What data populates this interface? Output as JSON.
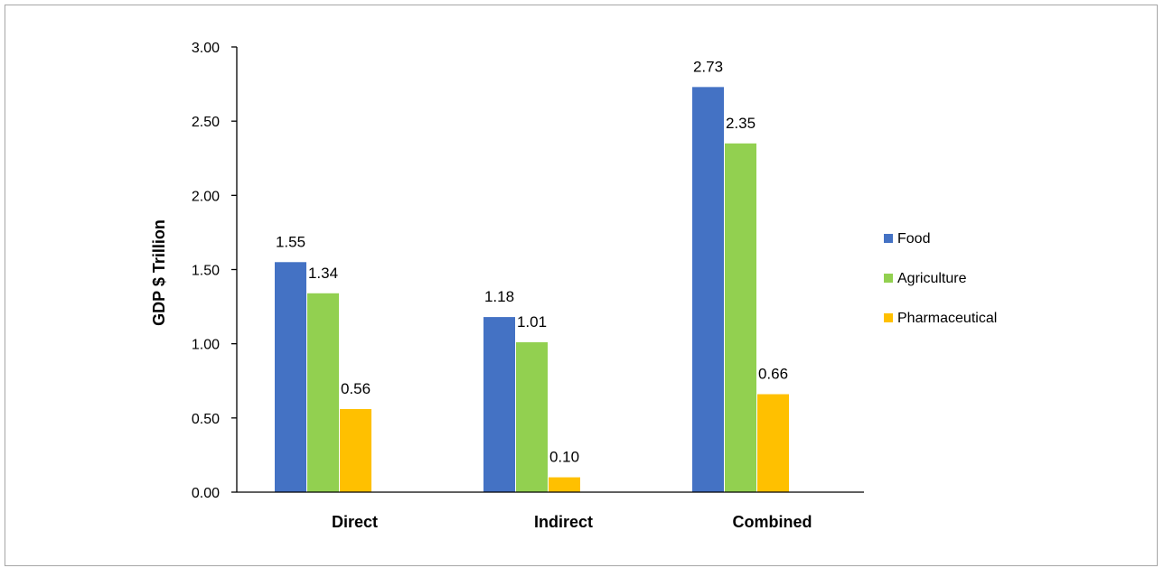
{
  "chart_data": {
    "type": "bar",
    "title": "",
    "xlabel": "",
    "ylabel": "GDP $ Trillion",
    "categories": [
      "Direct",
      "Indirect",
      "Combined"
    ],
    "series": [
      {
        "name": "Food",
        "color": "#4472c4",
        "values": [
          1.55,
          1.18,
          2.73
        ],
        "labels": [
          "1.55",
          "1.18",
          "2.73"
        ]
      },
      {
        "name": "Agriculture",
        "color": "#92d050",
        "values": [
          1.34,
          1.01,
          2.35
        ],
        "labels": [
          "1.34",
          "1.01",
          "2.35"
        ]
      },
      {
        "name": "Pharmaceutical",
        "color": "#ffc000",
        "values": [
          0.56,
          0.1,
          0.66
        ],
        "labels": [
          "0.56",
          "0.10",
          "0.66"
        ]
      }
    ],
    "ylim": [
      0,
      3
    ],
    "yticks": [
      0,
      0.5,
      1.0,
      1.5,
      2.0,
      2.5,
      3.0
    ],
    "ytick_labels": [
      "0.00",
      "0.50",
      "1.00",
      "1.50",
      "2.00",
      "2.50",
      "3.00"
    ],
    "grid": false,
    "legend": "right"
  }
}
